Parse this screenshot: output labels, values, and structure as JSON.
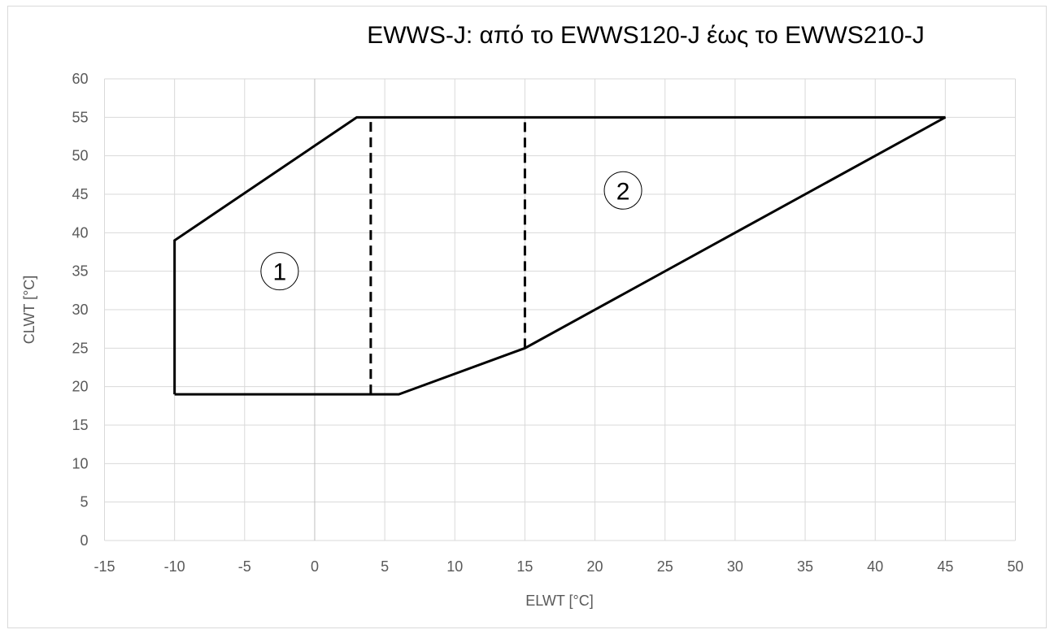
{
  "chart_data": {
    "type": "line",
    "title": "EWWS-J: από το EWWS120-J έως το  EWWS210-J",
    "xlabel": "ELWT [°C]",
    "ylabel": "CLWT [°C]",
    "xlim": [
      -15,
      50
    ],
    "ylim": [
      0,
      60
    ],
    "x_ticks": [
      -15,
      -10,
      -5,
      0,
      5,
      10,
      15,
      20,
      25,
      30,
      35,
      40,
      45,
      50
    ],
    "y_ticks": [
      0,
      5,
      10,
      15,
      20,
      25,
      30,
      35,
      40,
      45,
      50,
      55,
      60
    ],
    "grid": true,
    "series": [
      {
        "style": "solid",
        "points": [
          [
            -10,
            19
          ],
          [
            -10,
            39
          ],
          [
            3,
            55
          ],
          [
            45,
            55
          ],
          [
            15,
            25
          ],
          [
            6,
            19
          ],
          [
            -10,
            19
          ]
        ]
      },
      {
        "style": "dashed",
        "points": [
          [
            4,
            19
          ],
          [
            4,
            55
          ]
        ]
      },
      {
        "style": "dashed",
        "points": [
          [
            15,
            25
          ],
          [
            15,
            55
          ]
        ]
      }
    ],
    "annotations": [
      {
        "label": "1",
        "x": -2.5,
        "y": 35,
        "style": "circled"
      },
      {
        "label": "2",
        "x": 22,
        "y": 45.5,
        "style": "circled"
      }
    ],
    "colors": {
      "envelope": "#000000",
      "grid": "#d9d9d9",
      "zero_line": "#bfbfbf",
      "tick_text": "#595959"
    }
  }
}
